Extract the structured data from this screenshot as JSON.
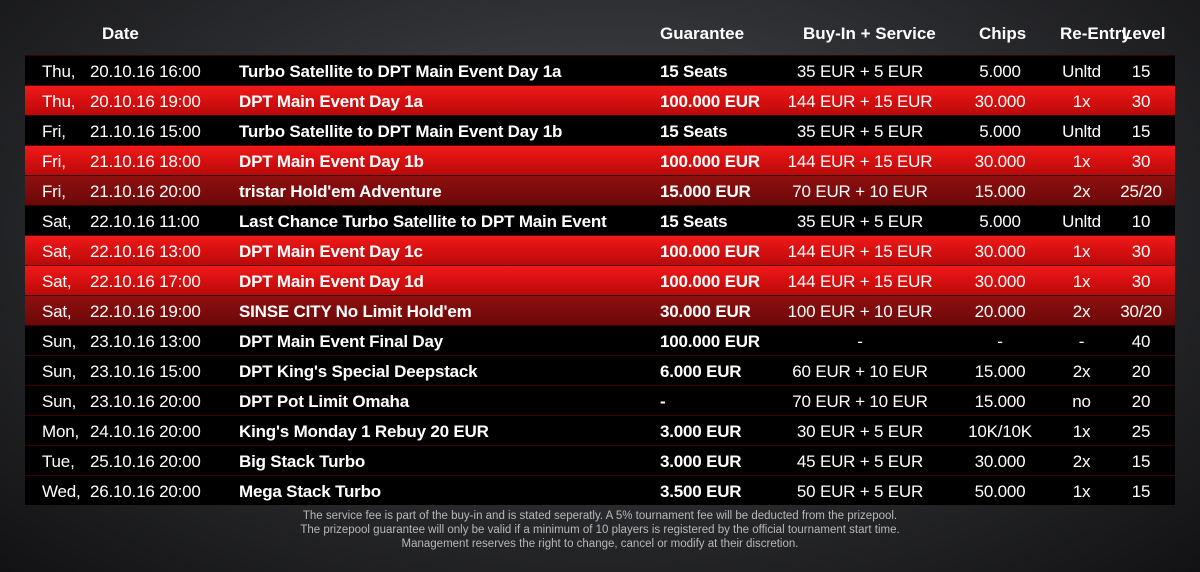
{
  "header": {
    "date": "Date",
    "guarantee": "Guarantee",
    "buyin": "Buy-In + Service",
    "chips": "Chips",
    "reentry": "Re-Entry",
    "level": "Level"
  },
  "rows": [
    {
      "day": "Thu,",
      "datetime": "20.10.16 16:00",
      "event": "Turbo Satellite to DPT Main Event Day 1a",
      "guarantee": "15 Seats",
      "buyin": "35 EUR + 5 EUR",
      "chips": "5.000",
      "reentry": "Unltd",
      "level": "15",
      "style": "plain"
    },
    {
      "day": "Thu,",
      "datetime": "20.10.16 19:00",
      "event": "DPT Main Event Day 1a",
      "guarantee": "100.000 EUR",
      "buyin": "144 EUR + 15 EUR",
      "chips": "30.000",
      "reentry": "1x",
      "level": "30",
      "style": "main"
    },
    {
      "day": "Fri,",
      "datetime": "21.10.16 15:00",
      "event": "Turbo Satellite to DPT Main Event Day 1b",
      "guarantee": "15 Seats",
      "buyin": "35 EUR + 5 EUR",
      "chips": "5.000",
      "reentry": "Unltd",
      "level": "15",
      "style": "plain"
    },
    {
      "day": "Fri,",
      "datetime": "21.10.16 18:00",
      "event": "DPT Main Event Day 1b",
      "guarantee": "100.000 EUR",
      "buyin": "144 EUR + 15 EUR",
      "chips": "30.000",
      "reentry": "1x",
      "level": "30",
      "style": "main"
    },
    {
      "day": "Fri,",
      "datetime": "21.10.16 20:00",
      "event": "tristar Hold'em Adventure",
      "guarantee": "15.000 EUR",
      "buyin": "70 EUR + 10 EUR",
      "chips": "15.000",
      "reentry": "2x",
      "level": "25/20",
      "style": "side"
    },
    {
      "day": "Sat,",
      "datetime": "22.10.16 11:00",
      "event": "Last Chance Turbo Satellite to DPT Main Event",
      "guarantee": "15 Seats",
      "buyin": "35 EUR + 5 EUR",
      "chips": "5.000",
      "reentry": "Unltd",
      "level": "10",
      "style": "plain"
    },
    {
      "day": "Sat,",
      "datetime": "22.10.16 13:00",
      "event": "DPT Main Event Day 1c",
      "guarantee": "100.000 EUR",
      "buyin": "144 EUR + 15 EUR",
      "chips": "30.000",
      "reentry": "1x",
      "level": "30",
      "style": "main"
    },
    {
      "day": "Sat,",
      "datetime": "22.10.16 17:00",
      "event": "DPT Main Event Day 1d",
      "guarantee": "100.000 EUR",
      "buyin": "144 EUR + 15 EUR",
      "chips": "30.000",
      "reentry": "1x",
      "level": "30",
      "style": "main"
    },
    {
      "day": "Sat,",
      "datetime": "22.10.16 19:00",
      "event": "SINSE CITY No Limit Hold'em",
      "guarantee": "30.000 EUR",
      "buyin": "100 EUR + 10 EUR",
      "chips": "20.000",
      "reentry": "2x",
      "level": "30/20",
      "style": "side"
    },
    {
      "day": "Sun,",
      "datetime": "23.10.16 13:00",
      "event": "DPT Main Event Final Day",
      "guarantee": "100.000 EUR",
      "buyin": "-",
      "chips": "-",
      "reentry": "-",
      "level": "40",
      "style": "plain"
    },
    {
      "day": "Sun,",
      "datetime": "23.10.16 15:00",
      "event": "DPT King's Special Deepstack",
      "guarantee": "6.000 EUR",
      "buyin": "60 EUR + 10 EUR",
      "chips": "15.000",
      "reentry": "2x",
      "level": "20",
      "style": "plain"
    },
    {
      "day": "Sun,",
      "datetime": "23.10.16 20:00",
      "event": "DPT Pot Limit Omaha",
      "guarantee": "-",
      "buyin": "70 EUR + 10 EUR",
      "chips": "15.000",
      "reentry": "no",
      "level": "20",
      "style": "plain"
    },
    {
      "day": "Mon,",
      "datetime": "24.10.16 20:00",
      "event": "King's Monday 1 Rebuy 20 EUR",
      "guarantee": "3.000 EUR",
      "buyin": "30 EUR + 5 EUR",
      "chips": "10K/10K",
      "reentry": "1x",
      "level": "25",
      "style": "plain"
    },
    {
      "day": "Tue,",
      "datetime": "25.10.16 20:00",
      "event": "Big Stack Turbo",
      "guarantee": "3.000 EUR",
      "buyin": "45 EUR + 5 EUR",
      "chips": "30.000",
      "reentry": "2x",
      "level": "15",
      "style": "plain"
    },
    {
      "day": "Wed,",
      "datetime": "26.10.16 20:00",
      "event": "Mega Stack Turbo",
      "guarantee": "3.500 EUR",
      "buyin": "50 EUR + 5 EUR",
      "chips": "50.000",
      "reentry": "1x",
      "level": "15",
      "style": "plain"
    }
  ],
  "footer": {
    "line1": "The service fee is part of the buy-in and is stated seperatly. A 5% tournament fee will be deducted from the prizepool.",
    "line2": "The prizepool guarantee will only be valid if a minimum of 10 players is registered by the official tournament start time.",
    "line3": "Management reserves the right to change, cancel or modify at their discretion."
  }
}
